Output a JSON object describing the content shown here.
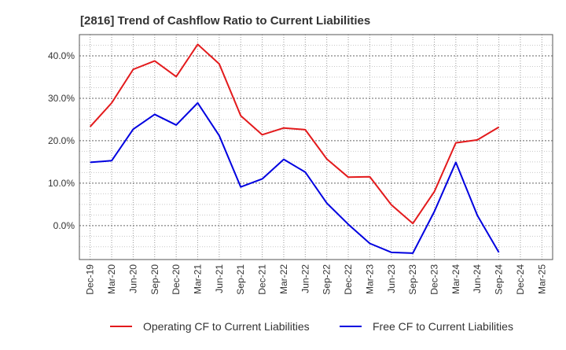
{
  "chart_data": {
    "type": "line",
    "title": "[2816]  Trend of Cashflow Ratio to Current Liabilities",
    "xlabel": "",
    "ylabel": "",
    "categories": [
      "Dec-19",
      "Mar-20",
      "Jun-20",
      "Sep-20",
      "Dec-20",
      "Mar-21",
      "Jun-21",
      "Sep-21",
      "Dec-21",
      "Mar-22",
      "Jun-22",
      "Sep-22",
      "Dec-22",
      "Mar-23",
      "Jun-23",
      "Sep-23",
      "Dec-23",
      "Mar-24",
      "Jun-24",
      "Sep-24",
      "Dec-24",
      "Mar-25"
    ],
    "yticks": [
      0,
      10,
      20,
      30,
      40
    ],
    "ytick_labels": [
      "0.0%",
      "10.0%",
      "20.0%",
      "30.0%",
      "40.0%"
    ],
    "ylim": [
      -8,
      45
    ],
    "grid": true,
    "legend_position": "bottom",
    "series": [
      {
        "name": "Operating CF to Current Liabilities",
        "color": "#e31a1c",
        "values": [
          23.3,
          28.9,
          36.8,
          38.8,
          35.1,
          42.7,
          38.1,
          25.9,
          21.4,
          23.0,
          22.6,
          15.7,
          11.4,
          11.5,
          4.9,
          0.5,
          8.0,
          19.5,
          20.2,
          23.2,
          null,
          null
        ]
      },
      {
        "name": "Free CF to Current Liabilities",
        "color": "#0000e0",
        "values": [
          14.9,
          15.3,
          22.7,
          26.2,
          23.7,
          28.9,
          21.2,
          9.1,
          11.0,
          15.6,
          12.6,
          5.3,
          0.3,
          -4.2,
          -6.3,
          -6.5,
          3.3,
          14.9,
          2.4,
          -6.3,
          null,
          null
        ]
      }
    ]
  }
}
